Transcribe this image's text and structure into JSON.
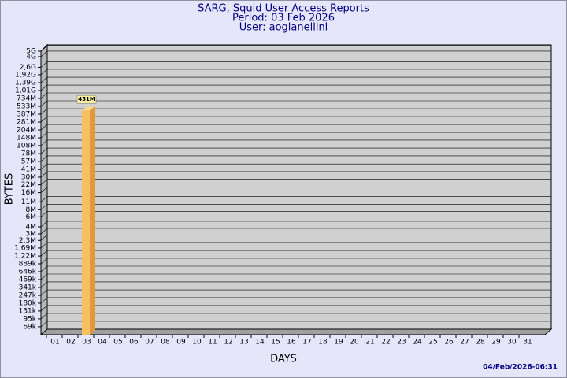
{
  "chart_data": {
    "type": "bar",
    "title": "SARG, Squid User Access Reports",
    "subtitle": "Period: 03 Feb 2026",
    "user": "User: aogianellini",
    "x_label": "DAYS",
    "y_label": "BYTES",
    "timestamp": "04/Feb/2026-06:31",
    "categories": [
      "01",
      "02",
      "03",
      "04",
      "05",
      "06",
      "07",
      "08",
      "09",
      "10",
      "11",
      "12",
      "13",
      "14",
      "15",
      "16",
      "17",
      "18",
      "19",
      "20",
      "21",
      "22",
      "23",
      "24",
      "25",
      "26",
      "27",
      "28",
      "29",
      "30",
      "31"
    ],
    "values": [
      null,
      null,
      451000000,
      null,
      null,
      null,
      null,
      null,
      null,
      null,
      null,
      null,
      null,
      null,
      null,
      null,
      null,
      null,
      null,
      null,
      null,
      null,
      null,
      null,
      null,
      null,
      null,
      null,
      null,
      null,
      null
    ],
    "value_labels": [
      null,
      null,
      "451M",
      null,
      null,
      null,
      null,
      null,
      null,
      null,
      null,
      null,
      null,
      null,
      null,
      null,
      null,
      null,
      null,
      null,
      null,
      null,
      null,
      null,
      null,
      null,
      null,
      null,
      null,
      null,
      null
    ],
    "color": "#f4c060",
    "log_scale": true,
    "grid": true,
    "ylim": [
      50000,
      5000000000
    ],
    "yticks": [
      {
        "value": 5000000000,
        "label": "5G"
      },
      {
        "value": 4000000000,
        "label": "4G"
      },
      {
        "value": 2600000000,
        "label": "2,6G"
      },
      {
        "value": 1920000000,
        "label": "1,92G"
      },
      {
        "value": 1390000000,
        "label": "1,39G"
      },
      {
        "value": 1010000000,
        "label": "1,01G"
      },
      {
        "value": 734000000,
        "label": "734M"
      },
      {
        "value": 533000000,
        "label": "533M"
      },
      {
        "value": 387000000,
        "label": "387M"
      },
      {
        "value": 281000000,
        "label": "281M"
      },
      {
        "value": 204000000,
        "label": "204M"
      },
      {
        "value": 148000000,
        "label": "148M"
      },
      {
        "value": 108000000,
        "label": "108M"
      },
      {
        "value": 78000000,
        "label": "78M"
      },
      {
        "value": 57000000,
        "label": "57M"
      },
      {
        "value": 41000000,
        "label": "41M"
      },
      {
        "value": 30000000,
        "label": "30M"
      },
      {
        "value": 22000000,
        "label": "22M"
      },
      {
        "value": 16000000,
        "label": "16M"
      },
      {
        "value": 11000000,
        "label": "11M"
      },
      {
        "value": 8000000,
        "label": "8M"
      },
      {
        "value": 6000000,
        "label": "6M"
      },
      {
        "value": 4000000,
        "label": "4M"
      },
      {
        "value": 3000000,
        "label": "3M"
      },
      {
        "value": 2300000,
        "label": "2,3M"
      },
      {
        "value": 1690000,
        "label": "1,69M"
      },
      {
        "value": 1220000,
        "label": "1,22M"
      },
      {
        "value": 889000,
        "label": "889k"
      },
      {
        "value": 646000,
        "label": "646k"
      },
      {
        "value": 469000,
        "label": "469k"
      },
      {
        "value": 341000,
        "label": "341k"
      },
      {
        "value": 247000,
        "label": "247k"
      },
      {
        "value": 180000,
        "label": "180k"
      },
      {
        "value": 131000,
        "label": "131k"
      },
      {
        "value": 95000,
        "label": "95k"
      },
      {
        "value": 69000,
        "label": "69k"
      }
    ]
  }
}
